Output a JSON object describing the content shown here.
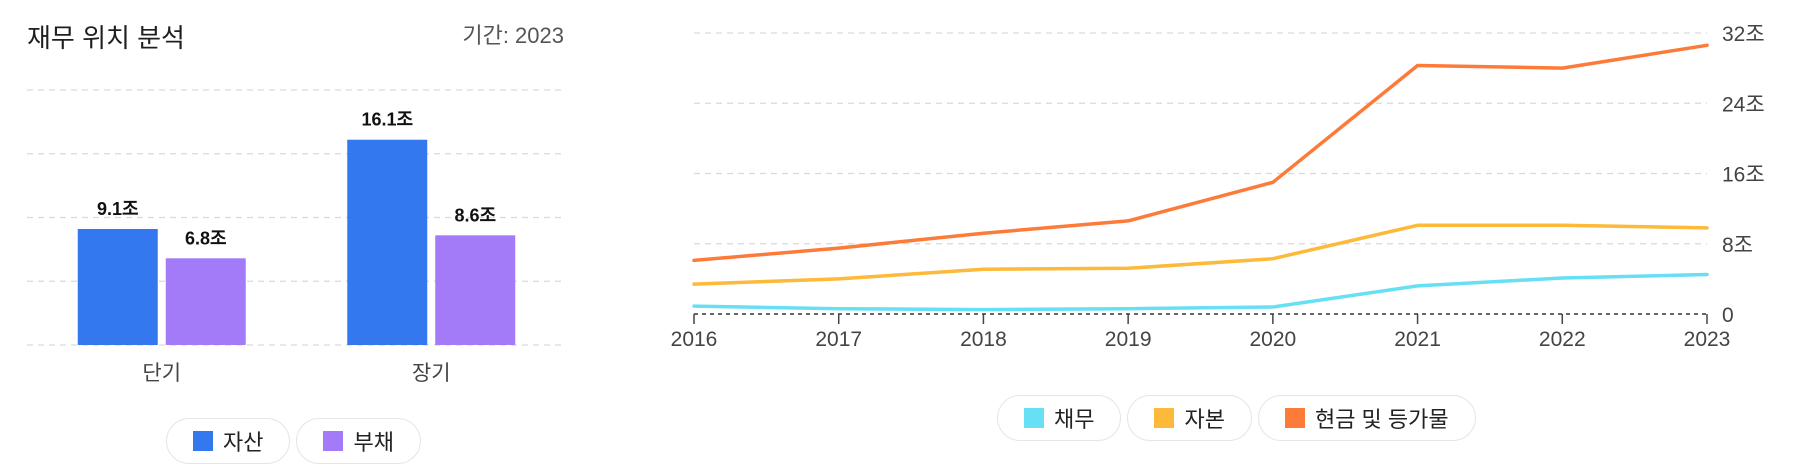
{
  "panel": {
    "title": "재무 위치 분석",
    "period": "기간: 2023"
  },
  "chart_data": [
    {
      "type": "bar",
      "categories": [
        "단기",
        "장기"
      ],
      "series": [
        {
          "name": "자산",
          "values": [
            9.1,
            16.1
          ],
          "labels": [
            "9.1조",
            "16.1조"
          ],
          "color": "#3478f0"
        },
        {
          "name": "부채",
          "values": [
            6.8,
            8.6
          ],
          "labels": [
            "6.8조",
            "8.6조"
          ],
          "color": "#a37af8"
        }
      ],
      "ylim": [
        0,
        20
      ],
      "grid": true,
      "legend": "bottom"
    },
    {
      "type": "line",
      "x": [
        "2016",
        "2017",
        "2018",
        "2019",
        "2020",
        "2021",
        "2022",
        "2023"
      ],
      "series": [
        {
          "name": "채무",
          "values": [
            0.9,
            0.6,
            0.5,
            0.6,
            0.8,
            3.2,
            4.1,
            4.5
          ],
          "color": "#67dff5"
        },
        {
          "name": "자본",
          "values": [
            3.4,
            4.0,
            5.1,
            5.2,
            6.3,
            10.1,
            10.1,
            9.8
          ],
          "color": "#fcb93a"
        },
        {
          "name": "현금 및 등가물",
          "values": [
            6.1,
            7.5,
            9.2,
            10.6,
            15.0,
            28.3,
            28.0,
            30.6
          ],
          "color": "#fd7b39"
        }
      ],
      "ylim": [
        0,
        32
      ],
      "yticks": [
        "0",
        "8조",
        "16조",
        "24조",
        "32조"
      ],
      "y_axis_side": "right",
      "grid": true,
      "legend": "bottom"
    }
  ]
}
